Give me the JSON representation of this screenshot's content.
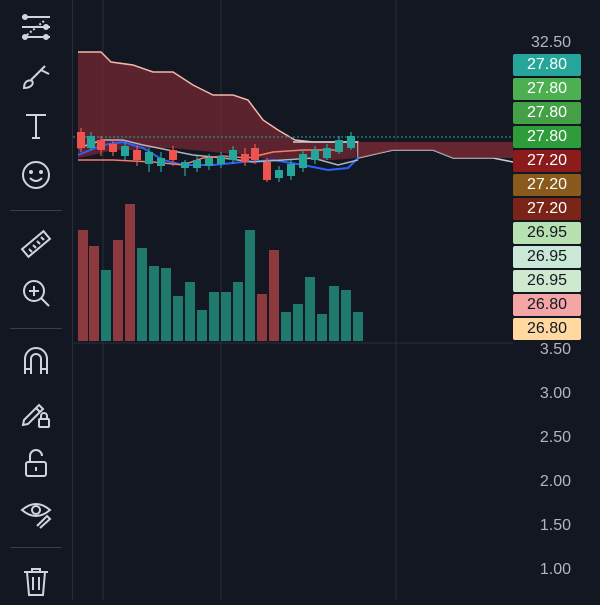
{
  "toolbar": {
    "tools": [
      {
        "name": "trend-line-tools-icon"
      },
      {
        "name": "brush-icon"
      },
      {
        "name": "text-tool-icon"
      },
      {
        "name": "emoji-icon"
      },
      {
        "name": "ruler-icon"
      },
      {
        "name": "zoom-in-icon"
      },
      {
        "name": "magnet-icon"
      },
      {
        "name": "lock-drawings-icon"
      },
      {
        "name": "unlock-icon"
      },
      {
        "name": "hide-drawings-icon"
      },
      {
        "name": "trash-icon"
      }
    ]
  },
  "price_axis": {
    "top_label": "32.50",
    "badges": [
      {
        "value": "27.80",
        "bg": "#26a69a",
        "fg": "#ffffff"
      },
      {
        "value": "27.80",
        "bg": "#4caf50",
        "fg": "#ffffff"
      },
      {
        "value": "27.80",
        "bg": "#43a047",
        "fg": "#ffffff"
      },
      {
        "value": "27.80",
        "bg": "#2e9c3a",
        "fg": "#ffffff"
      },
      {
        "value": "27.20",
        "bg": "#8b1a1a",
        "fg": "#ffffff"
      },
      {
        "value": "27.20",
        "bg": "#8a5a1c",
        "fg": "#ffffff"
      },
      {
        "value": "27.20",
        "bg": "#7a2418",
        "fg": "#ffffff"
      },
      {
        "value": "26.95",
        "bg": "#b7e1b0",
        "fg": "#131722"
      },
      {
        "value": "26.95",
        "bg": "#c9e8d6",
        "fg": "#131722"
      },
      {
        "value": "26.95",
        "bg": "#cfe9cf",
        "fg": "#131722"
      },
      {
        "value": "26.80",
        "bg": "#f4a6a6",
        "fg": "#131722"
      },
      {
        "value": "26.80",
        "bg": "#ffd9a0",
        "fg": "#131722"
      }
    ],
    "volume_labels": [
      "3.50",
      "3.00",
      "2.50",
      "2.00",
      "1.50",
      "1.00"
    ]
  },
  "colors": {
    "background": "#131722",
    "up": "#26a69a",
    "down": "#ef5350",
    "cloud": "#7b2a33",
    "grid": "#2a2e39"
  }
}
